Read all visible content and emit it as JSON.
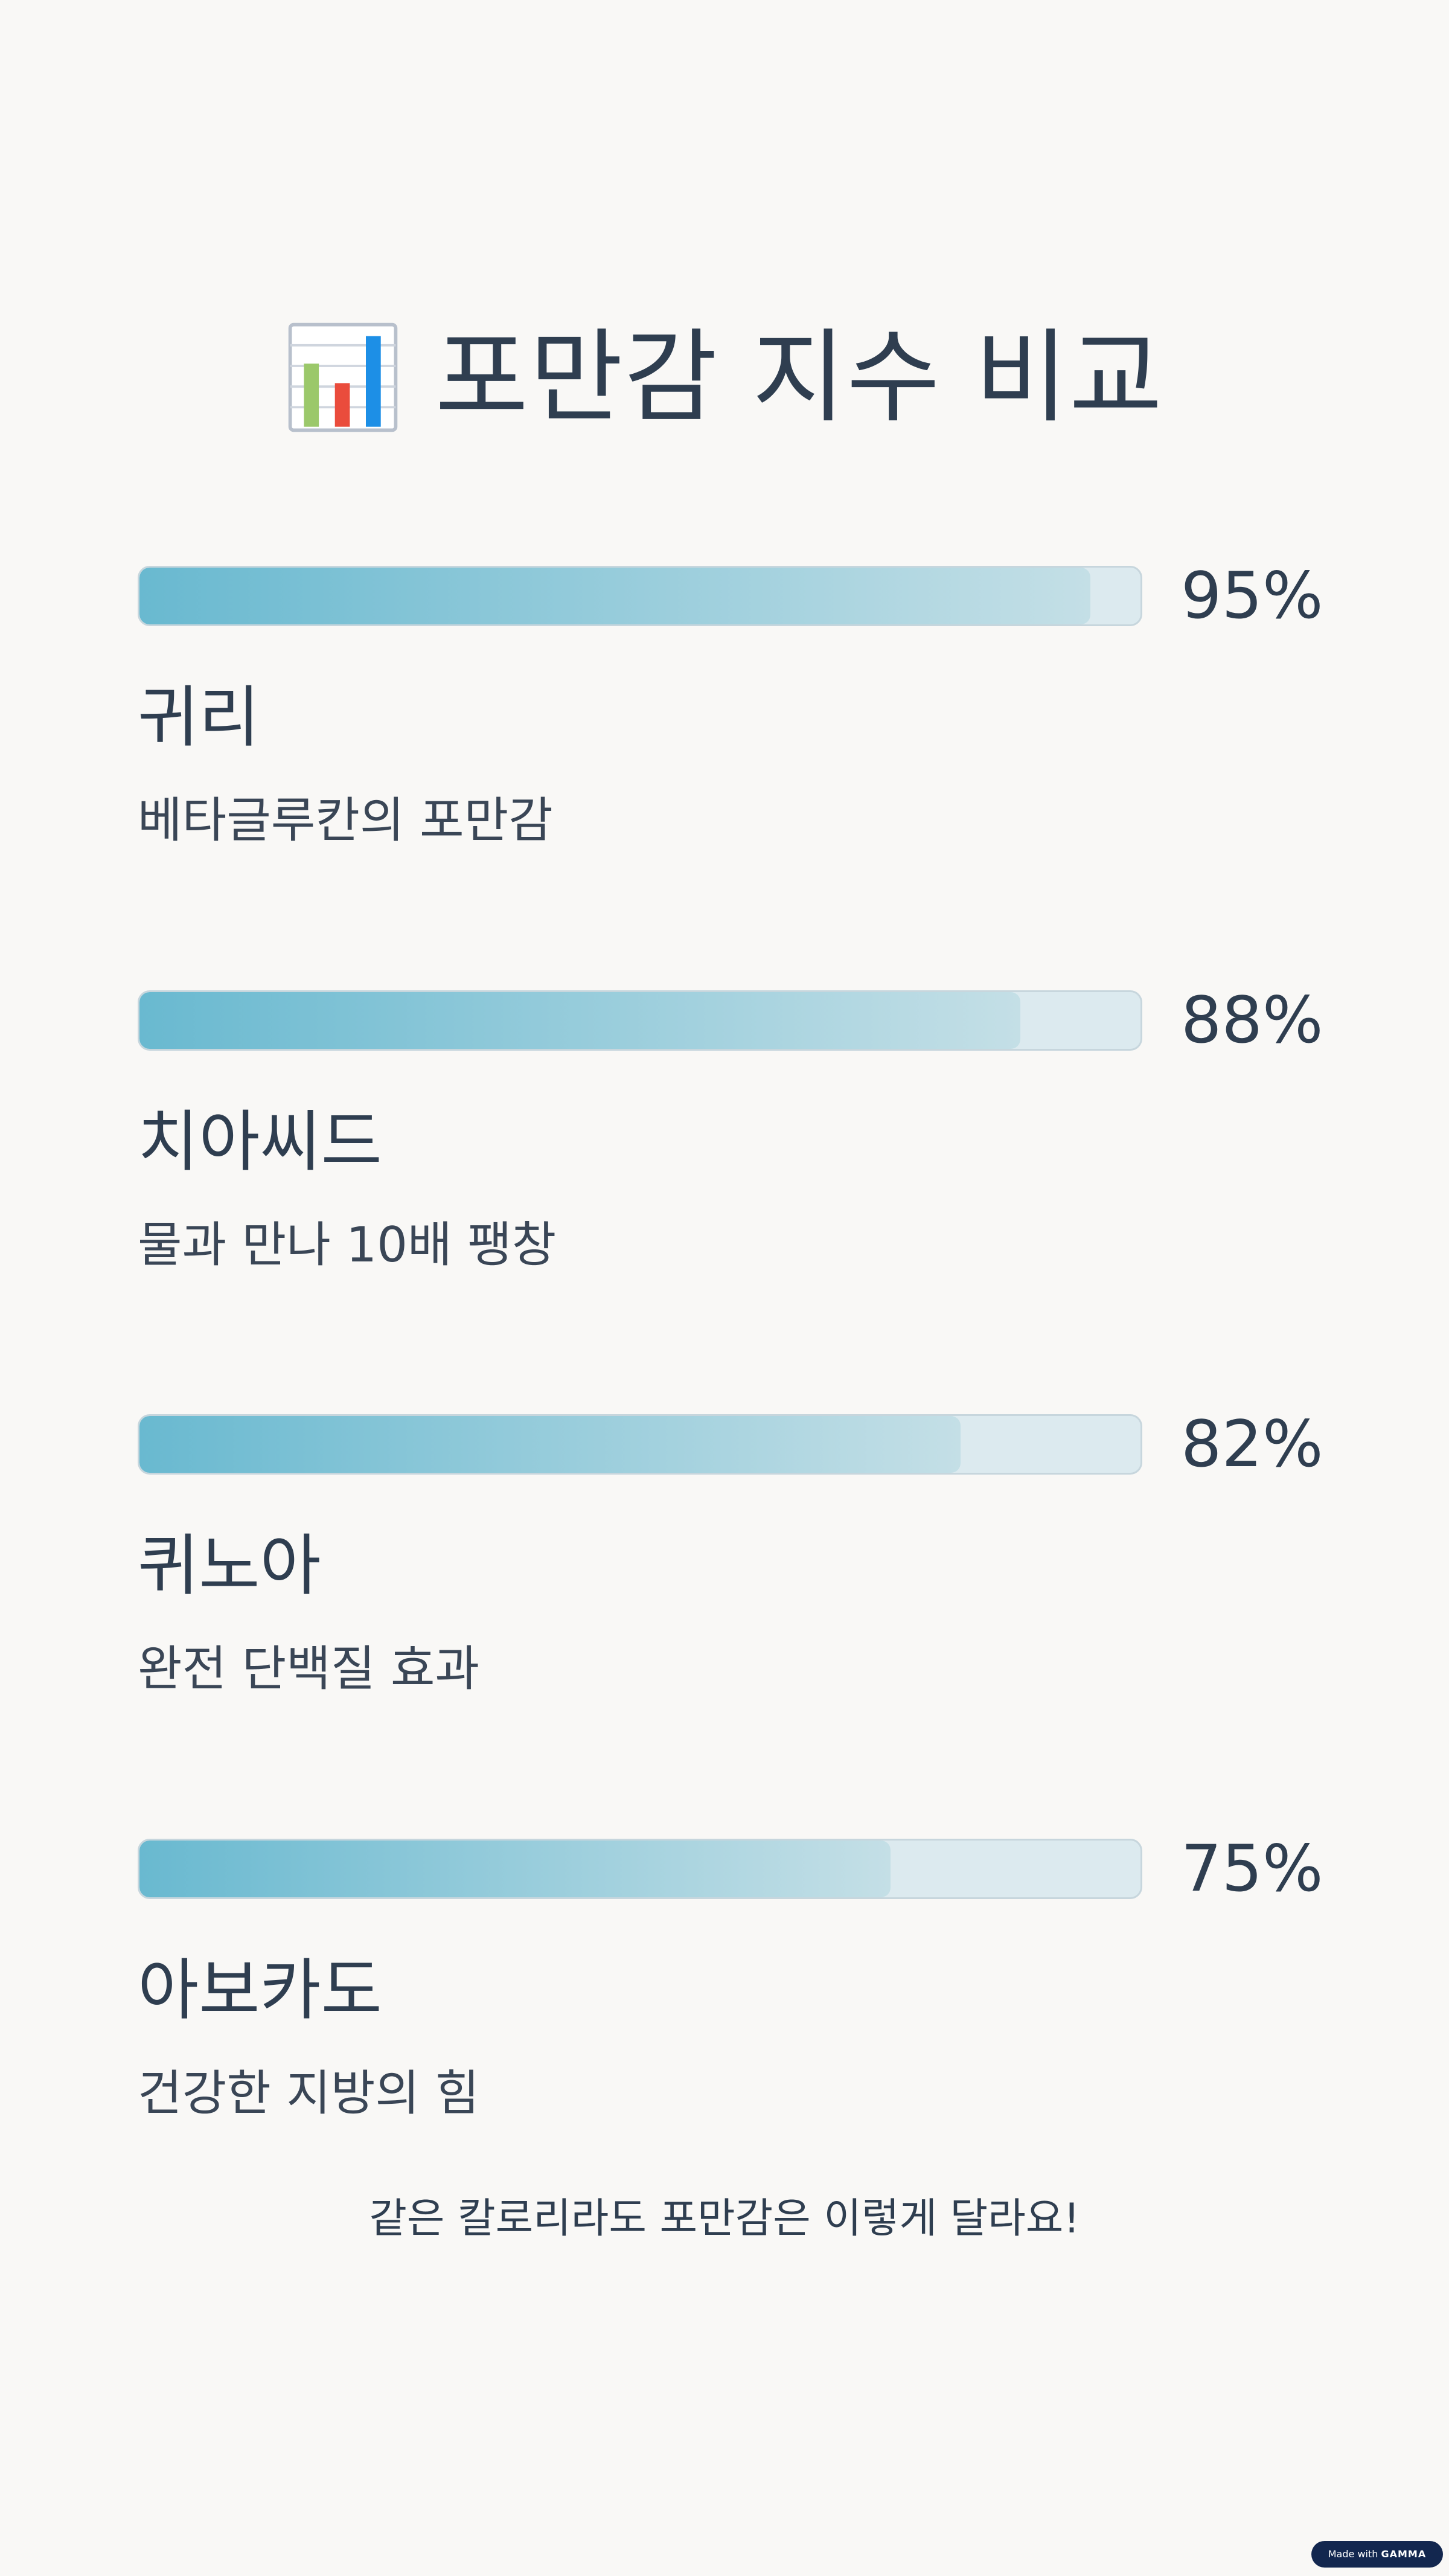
{
  "title": {
    "icon": "bar-chart-icon",
    "text": "포만감 지수 비교"
  },
  "chart_data": {
    "type": "bar",
    "orientation": "horizontal",
    "title": "포만감 지수 비교",
    "unit": "%",
    "xlim": [
      0,
      100
    ],
    "categories": [
      "귀리",
      "치아씨드",
      "퀴노아",
      "아보카도"
    ],
    "values": [
      95,
      88,
      82,
      75
    ],
    "value_labels": [
      "95%",
      "88%",
      "82%",
      "75%"
    ],
    "descriptions": [
      "베타글루칸의 포만감",
      "물과 만나 10배 팽창",
      "완전 단백질 효과",
      "건강한 지방의 힘"
    ],
    "colors": {
      "fill_start": "#69b9d0",
      "fill_end": "#c4dfe6",
      "track": "#dceaef"
    }
  },
  "footer": {
    "note": "같은 칼로리라도 포만감은 이렇게 달라요!",
    "badge_prefix": "Made with",
    "badge_brand": "GAMMA"
  }
}
